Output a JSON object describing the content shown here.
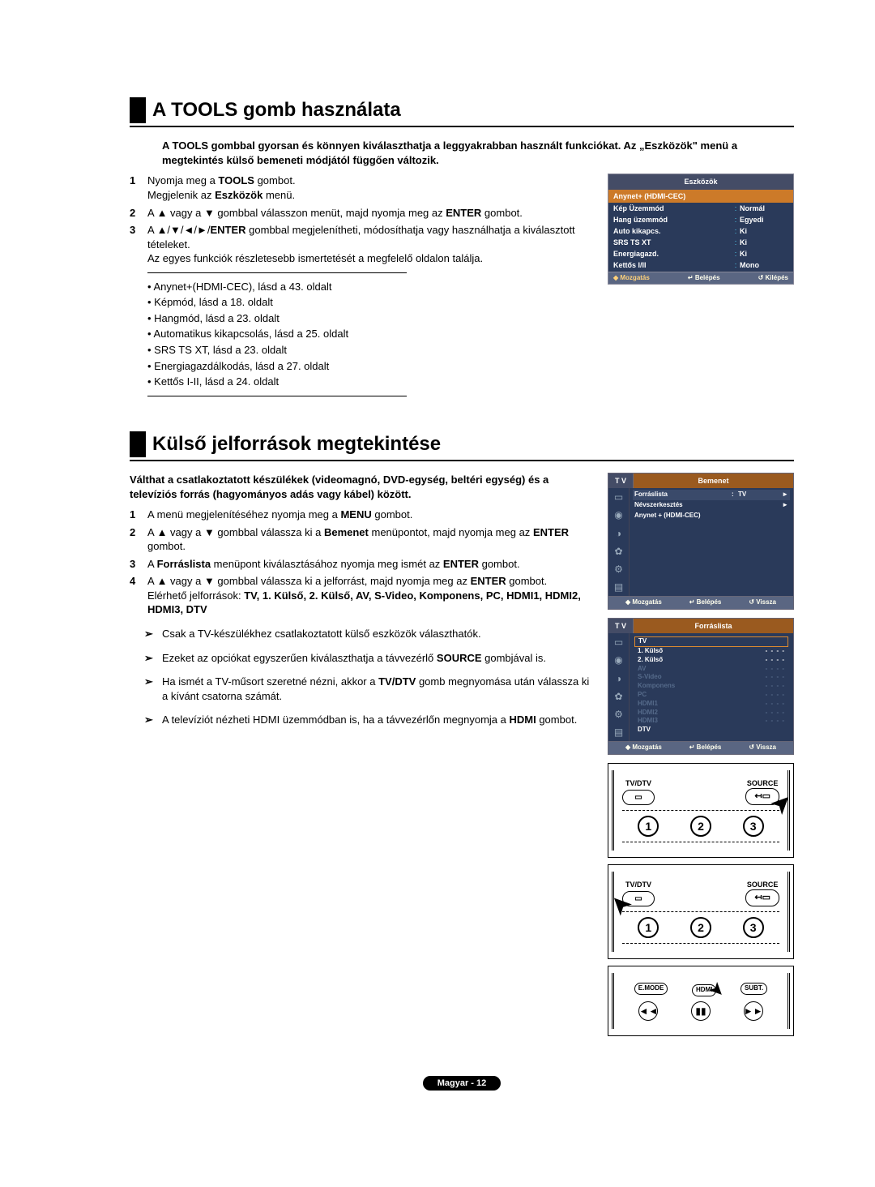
{
  "section1": {
    "title": "A TOOLS gomb használata",
    "intro": "A TOOLS gombbal gyorsan és könnyen kiválaszthatja a leggyakrabban használt funkciókat. Az „Eszközök\" menü a megtekintés külső bemeneti módjától függően változik.",
    "steps": [
      {
        "n": "1",
        "t": "Nyomja meg a <b>TOOLS</b> gombot.<br>Megjelenik az <b>Eszközök</b> menü."
      },
      {
        "n": "2",
        "t": "A ▲ vagy a ▼ gombbal válasszon menüt, majd nyomja meg az <b>ENTER</b> gombot."
      },
      {
        "n": "3",
        "t": "A ▲/▼/◄/►/<b>ENTER</b> gombbal megjelenítheti, módosíthatja vagy használhatja a kiválasztott tételeket.<br>Az egyes funkciók részletesebb ismertetését a megfelelő oldalon találja."
      }
    ],
    "bullets": [
      "• Anynet+(HDMI-CEC), lásd a 43. oldalt",
      "• Képmód, lásd a 18. oldalt",
      "• Hangmód, lásd a 23. oldalt",
      "• Automatikus kikapcsolás, lásd a 25. oldalt",
      "• SRS TS XT, lásd a 23. oldalt",
      "• Energiagazdálkodás, lásd a 27. oldalt",
      "• Kettős I-II, lásd a 24. oldalt"
    ],
    "osd": {
      "title": "Eszközök",
      "highlight": "Anynet+ (HDMI-CEC)",
      "rows": [
        {
          "k": "Kép Üzemmód",
          "v": "Normál"
        },
        {
          "k": "Hang üzemmód",
          "v": "Egyedi"
        },
        {
          "k": "Auto kikapcs.",
          "v": "Ki"
        },
        {
          "k": "SRS TS XT",
          "v": "Ki"
        },
        {
          "k": "Energiagazd.",
          "v": "Ki"
        },
        {
          "k": "Kettős I/II",
          "v": "Mono"
        }
      ],
      "ftr": [
        "◆ Mozgatás",
        "↵ Belépés",
        "↺ Kilépés"
      ]
    }
  },
  "section2": {
    "title": "Külső jelforrások megtekintése",
    "intro": "Válthat a csatlakoztatott készülékek (videomagnó, DVD-egység, beltéri egység) és a televíziós forrás (hagyományos adás vagy kábel) között.",
    "steps": [
      {
        "n": "1",
        "t": "A menü megjelenítéséhez nyomja meg a <b>MENU</b> gombot."
      },
      {
        "n": "2",
        "t": "A ▲ vagy a ▼ gombbal válassza ki a <b>Bemenet</b> menüpontot, majd nyomja meg az <b>ENTER</b> gombot."
      },
      {
        "n": "3",
        "t": "A <b>Forráslista</b> menüpont kiválasztásához nyomja meg ismét az <b>ENTER</b> gombot."
      },
      {
        "n": "4",
        "t": "A ▲ vagy a ▼ gombbal válassza ki a jelforrást, majd nyomja meg az <b>ENTER</b> gombot.<br>Elérhető jelforrások: <b>TV, 1. Külső, 2. Külső, AV, S-Video, Komponens, PC, HDMI1, HDMI2, HDMI3, DTV</b>"
      }
    ],
    "notes": [
      "Csak a TV-készülékhez csatlakoztatott külső eszközök választhatók.",
      "Ezeket az opciókat egyszerűen kiválaszthatja a távvezérlő <b>SOURCE</b> gombjával is.",
      "Ha ismét a TV-műsort szeretné nézni, akkor a <b>TV/DTV</b> gomb megnyomása után válassza ki a kívánt csatorna számát.",
      "A televíziót nézheti HDMI üzemmódban is, ha a távvezérlőn megnyomja a <b>HDMI</b> gombot."
    ],
    "osd1": {
      "tv": "T V",
      "title": "Bemenet",
      "rows": [
        {
          "k": "Forráslista",
          "v": "TV",
          "hl": true,
          "ar": "►"
        },
        {
          "k": "Névszerkesztés",
          "v": "",
          "ar": "►"
        },
        {
          "k": "Anynet + (HDMI-CEC)",
          "v": ""
        }
      ],
      "ftr": [
        "◆ Mozgatás",
        "↵ Belépés",
        "↺ Vissza"
      ]
    },
    "osd2": {
      "tv": "T V",
      "title": "Forráslista",
      "items": [
        {
          "t": "TV",
          "sel": true,
          "dim": false,
          "d": ""
        },
        {
          "t": "1. Külső",
          "dim": false,
          "d": "- - - -"
        },
        {
          "t": "2. Külső",
          "dim": false,
          "d": "- - - -"
        },
        {
          "t": "AV",
          "dim": true,
          "d": "- - - -"
        },
        {
          "t": "S-Video",
          "dim": true,
          "d": "- - - -"
        },
        {
          "t": "Komponens",
          "dim": true,
          "d": "- - - -"
        },
        {
          "t": "PC",
          "dim": true,
          "d": "- - - -"
        },
        {
          "t": "HDMI1",
          "dim": true,
          "d": "- - - -"
        },
        {
          "t": "HDMI2",
          "dim": true,
          "d": "- - - -"
        },
        {
          "t": "HDMI3",
          "dim": true,
          "d": "- - - -"
        },
        {
          "t": "DTV",
          "dim": false,
          "d": ""
        }
      ],
      "ftr": [
        "◆ Mozgatás",
        "↵ Belépés",
        "↺ Vissza"
      ]
    },
    "remote": {
      "tvdtv": "TV/DTV",
      "source": "SOURCE",
      "emode": "E.MODE",
      "hdmi": "HDMI",
      "subt": "SUBT."
    }
  },
  "footer": "Magyar - 12"
}
